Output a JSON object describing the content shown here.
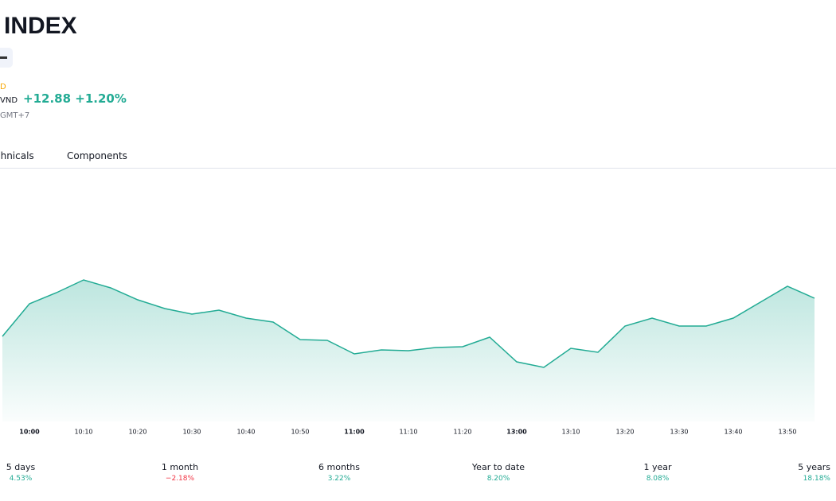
{
  "header": {
    "title": "INDEX",
    "exchange": "D",
    "currency": "VND",
    "change": "+12.88",
    "change_percent": "+1.20%",
    "timezone": "GMT+7"
  },
  "tabs": [
    "chnicals",
    "Components"
  ],
  "chart_data": {
    "type": "area",
    "categories": [
      null,
      "10:00",
      null,
      "10:10",
      null,
      "10:20",
      null,
      "10:30",
      null,
      "10:40",
      null,
      "10:50",
      null,
      "11:00",
      null,
      "11:10",
      null,
      "11:20",
      null,
      "13:00",
      null,
      "13:10",
      null,
      "13:20",
      null,
      "13:30",
      null,
      "13:40",
      null,
      "13:50",
      null
    ],
    "bold_categories": [
      "10:00",
      "11:00",
      "13:00"
    ],
    "values": [
      1077.4,
      1085.6,
      1088.4,
      1091.6,
      1089.6,
      1086.6,
      1084.4,
      1083,
      1084,
      1082,
      1081,
      1076.6,
      1076.4,
      1073,
      1074,
      1073.8,
      1074.6,
      1074.8,
      1077.2,
      1071,
      1069.6,
      1074.4,
      1073.4,
      1080,
      1082,
      1080,
      1080,
      1082,
      1086,
      1090,
      1087
    ],
    "color": "#22ab94",
    "ylim": [
      1058,
      1118
    ]
  },
  "performance": [
    {
      "period": "5 days",
      "change": "4.53%",
      "direction": "up"
    },
    {
      "period": "1 month",
      "change": "−2.18%",
      "direction": "down"
    },
    {
      "period": "6 months",
      "change": "3.22%",
      "direction": "up"
    },
    {
      "period": "Year to date",
      "change": "8.20%",
      "direction": "up"
    },
    {
      "period": "1 year",
      "change": "8.08%",
      "direction": "up"
    },
    {
      "period": "5 years",
      "change": "18.18%",
      "direction": "up"
    }
  ]
}
